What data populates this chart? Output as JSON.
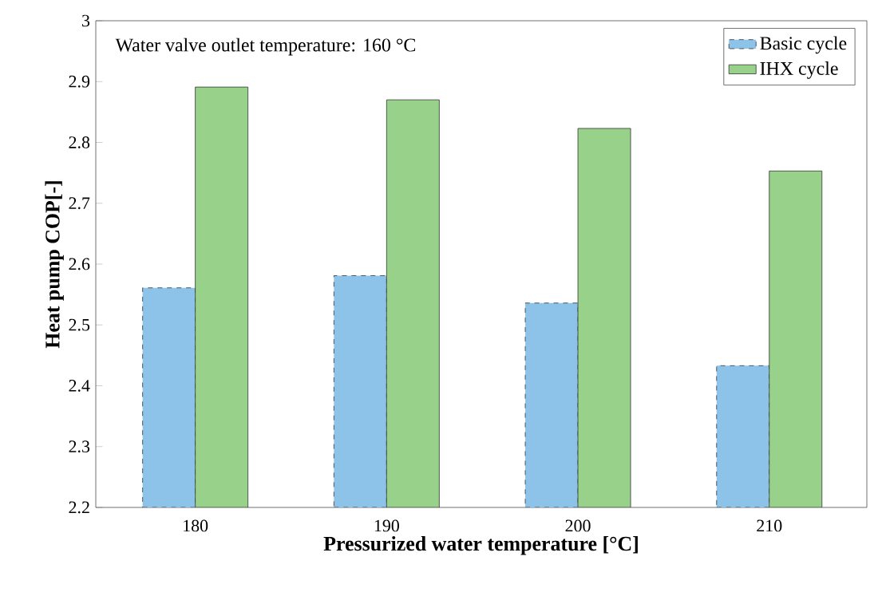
{
  "chart_data": {
    "type": "bar",
    "xlabel": "Pressurized water temperature [°C]",
    "ylabel": "Heat pump COP[-]",
    "annotations": [
      "Water valve outlet temperature: 160 °C"
    ],
    "categories": [
      "180",
      "190",
      "200",
      "210"
    ],
    "series": [
      {
        "name": "Basic cycle",
        "color": "#8dc3e8",
        "line_style": "dashed",
        "values": [
          2.561,
          2.581,
          2.536,
          2.433
        ]
      },
      {
        "name": "IHX cycle",
        "color": "#98d18a",
        "line_style": "solid",
        "values": [
          2.891,
          2.87,
          2.823,
          2.753
        ]
      }
    ],
    "ylim": [
      2.2,
      3
    ],
    "yticks": [
      2.2,
      2.3,
      2.4,
      2.5,
      2.6,
      2.7,
      2.8,
      2.9,
      3
    ],
    "grid": false,
    "legend": "top right"
  }
}
